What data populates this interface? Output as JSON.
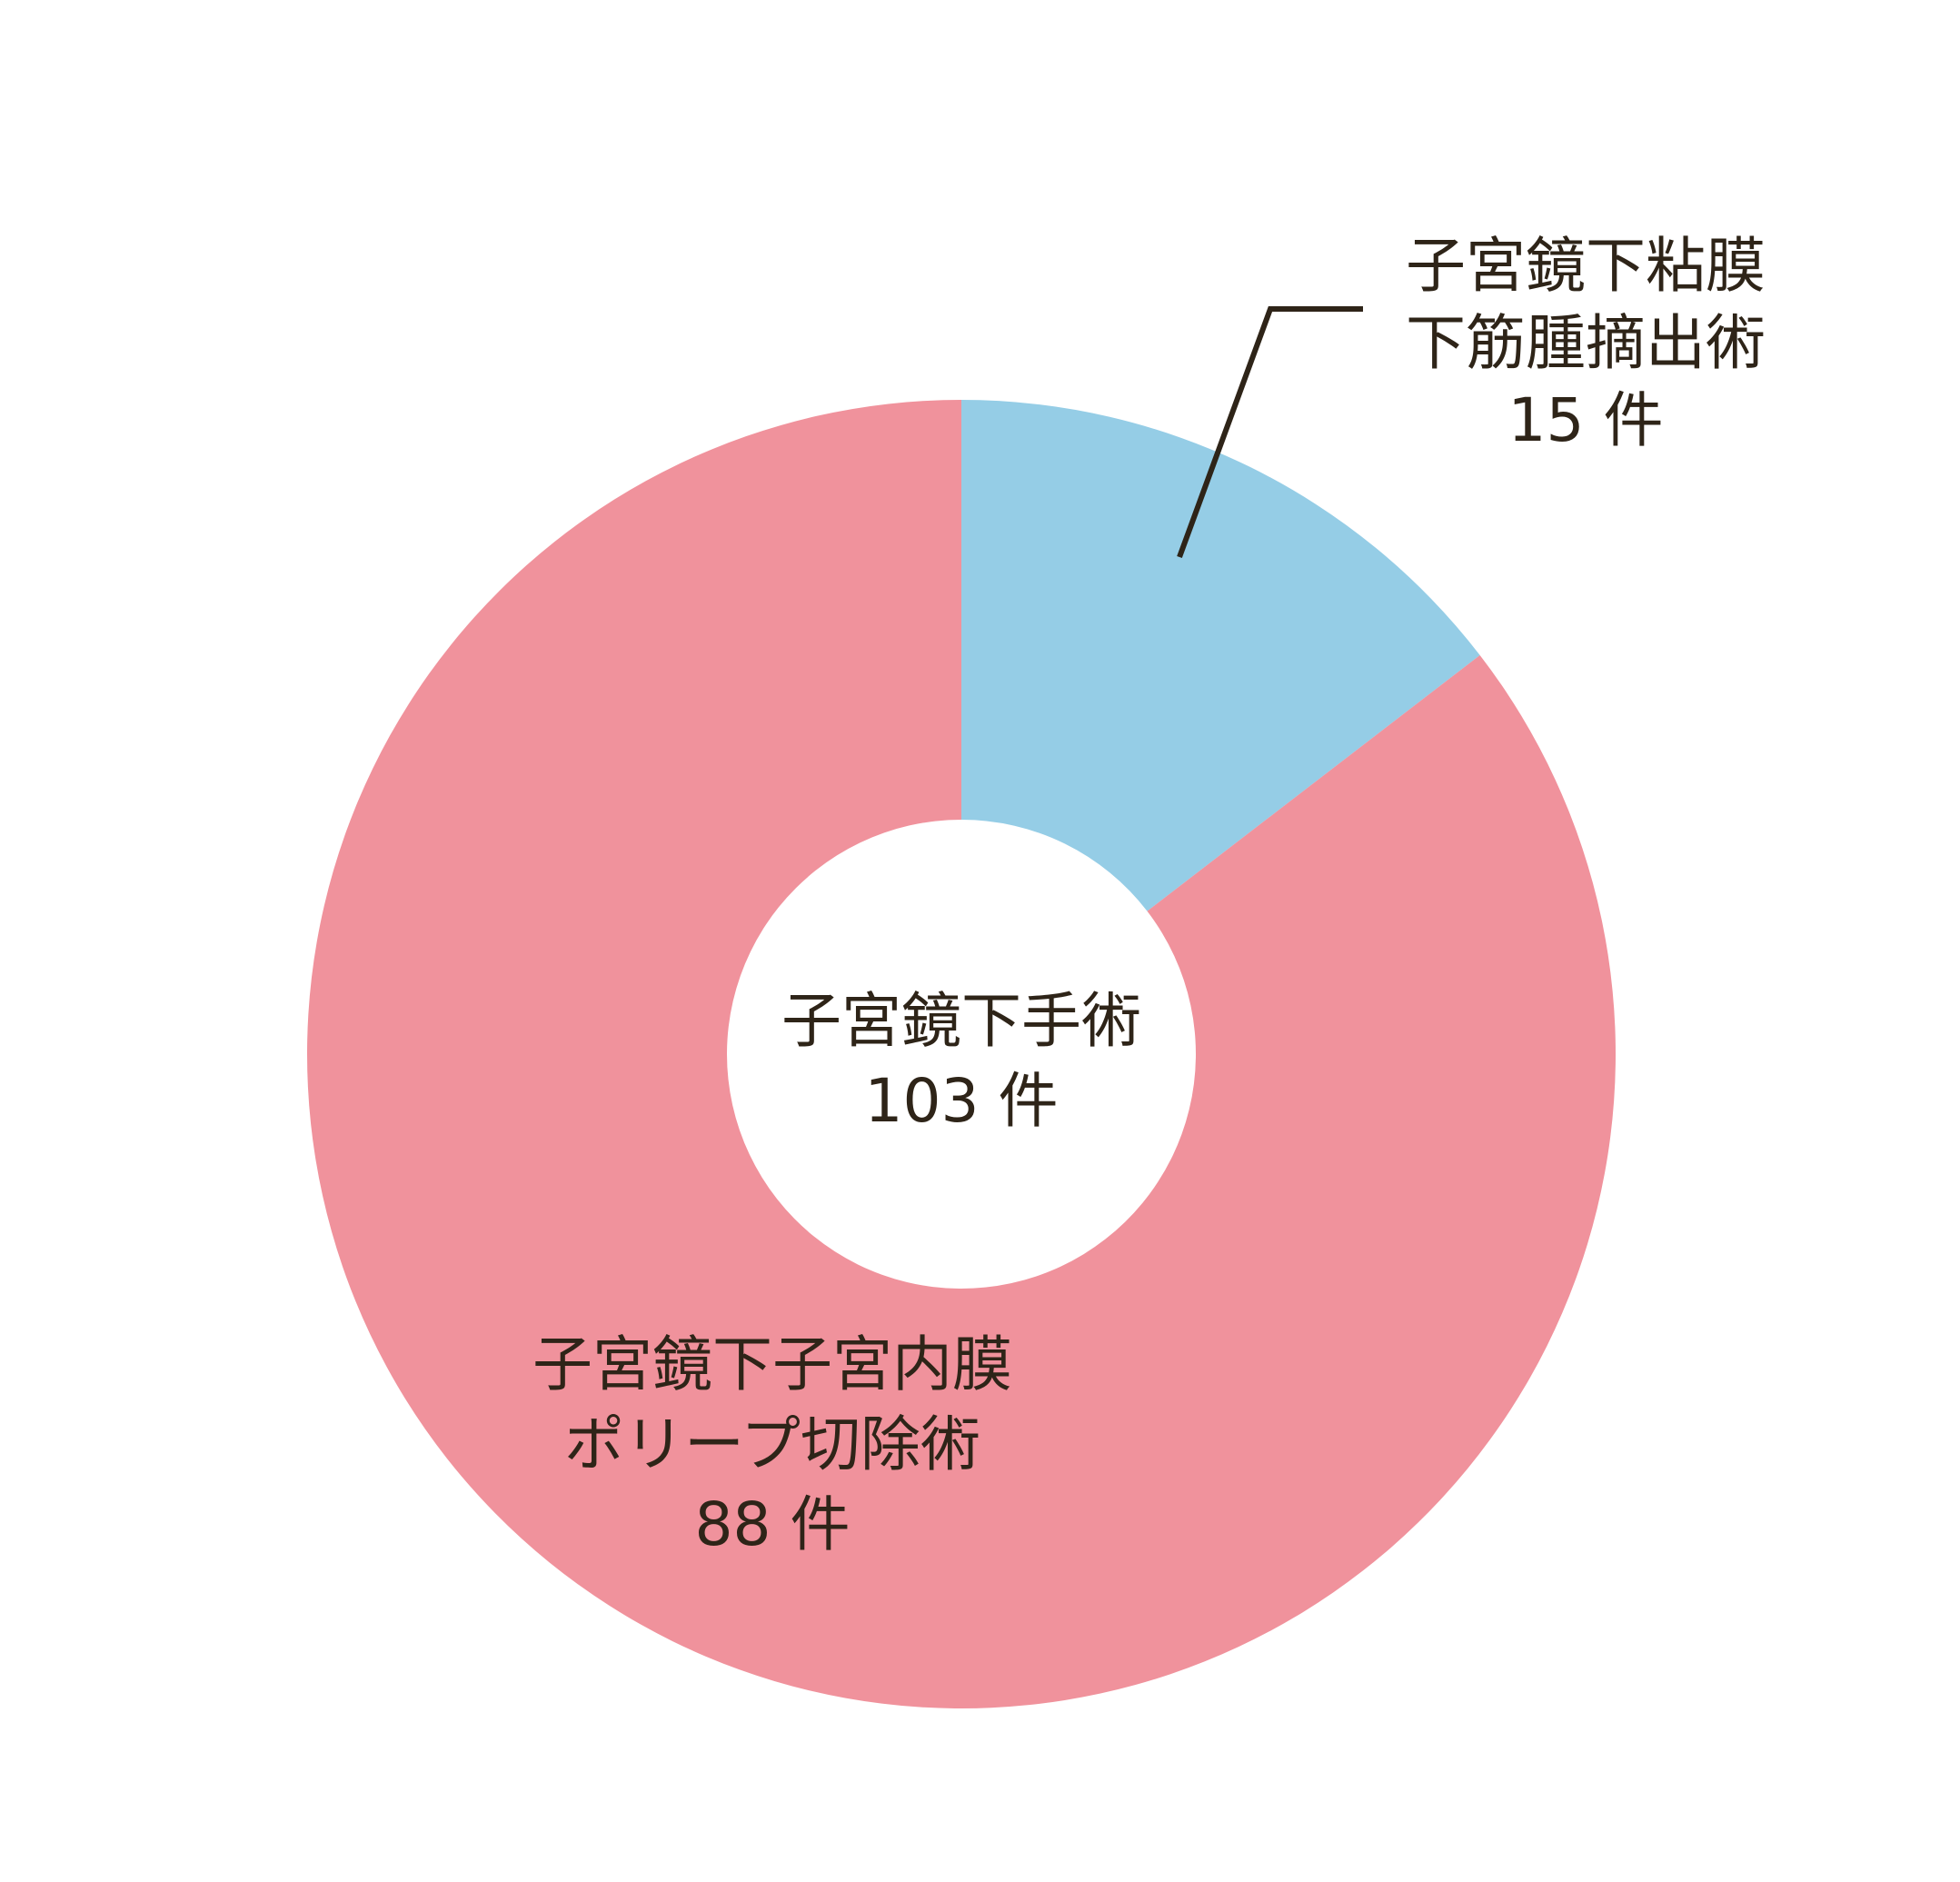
{
  "chart_data": {
    "type": "pie",
    "variant": "donut",
    "center_label": {
      "title": "子宮鏡下手術",
      "value": "103 件"
    },
    "slices": [
      {
        "name_lines": [
          "子宮鏡下粘膜",
          "下筋腫摘出術"
        ],
        "value": 15,
        "value_label": "15 件",
        "color": "#95cde6"
      },
      {
        "name_lines": [
          "子宮鏡下子宮内膜",
          "ポリープ切除術"
        ],
        "value": 88,
        "value_label": "88 件",
        "color": "#f0929c"
      }
    ],
    "total": 103,
    "start_angle": "12 o'clock",
    "direction": "clockwise",
    "label_text_color": "#2e2418",
    "background": "#ffffff"
  }
}
